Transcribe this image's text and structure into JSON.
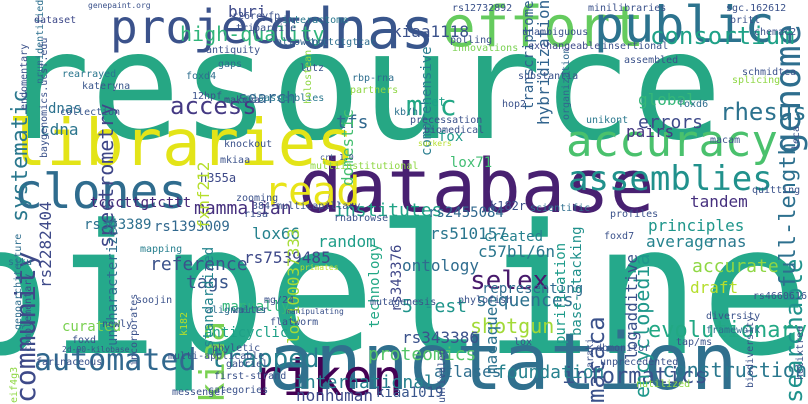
{
  "words": [
    {
      "text": "resource",
      "color": "#26a784"
    },
    {
      "text": "pipeline",
      "color": "#25a98b"
    },
    {
      "text": "annotation",
      "color": "#30708e"
    },
    {
      "text": "database",
      "color": "#482071"
    },
    {
      "text": "libraries",
      "color": "#e3e418"
    },
    {
      "text": "cdnas",
      "color": "#39568c"
    },
    {
      "text": "effort",
      "color": "#65cb5e"
    },
    {
      "text": "project",
      "color": "#3b528b"
    },
    {
      "text": "public",
      "color": "#2c738e"
    },
    {
      "text": "riken",
      "color": "#440154"
    },
    {
      "text": "accuracy",
      "color": "#4ac16d"
    },
    {
      "text": "clones",
      "color": "#2f6c8e"
    },
    {
      "text": "read",
      "color": "#e8e419"
    },
    {
      "text": "genome",
      "color": "#2e6e8e"
    },
    {
      "text": "automated",
      "color": "#31688e"
    },
    {
      "text": "trapped",
      "color": "#277f8e"
    },
    {
      "text": "assemblies",
      "color": "#21918c"
    },
    {
      "text": "community",
      "color": "#3e4a89"
    },
    {
      "text": "kiaa",
      "color": "#7ad151"
    },
    {
      "text": "consortium",
      "color": "#1fa187"
    },
    {
      "text": "access",
      "color": "#443983"
    },
    {
      "text": "mgc",
      "color": "#22a785"
    },
    {
      "text": "systematic",
      "color": "#2a788e"
    },
    {
      "text": "high-quality",
      "color": "#31b57b"
    },
    {
      "text": "spectrometry",
      "color": "#3f4788"
    },
    {
      "text": "macaca",
      "color": "#3b528b"
    },
    {
      "text": "searchable",
      "color": "#20928c"
    },
    {
      "text": "full-length",
      "color": "#2d708e"
    },
    {
      "text": "rhesus",
      "color": "#2c728e"
    },
    {
      "text": "selex",
      "color": "#481a6c"
    },
    {
      "text": "sequences",
      "color": "#2d718e"
    },
    {
      "text": "international",
      "color": "#26818e"
    },
    {
      "text": "evolutionary",
      "color": "#22a884"
    },
    {
      "text": "informatics",
      "color": "#3b528b"
    },
    {
      "text": "construction",
      "color": "#2a788e"
    },
    {
      "text": "atlases",
      "color": "#2e6e8e"
    },
    {
      "text": "foundation",
      "color": "#26828e"
    },
    {
      "text": "proteomics",
      "color": "#54c568"
    },
    {
      "text": "nonhuman",
      "color": "#3e4a89"
    },
    {
      "text": "kiaa1019",
      "color": "#39568c"
    },
    {
      "text": "shotgun",
      "color": "#a2da37"
    },
    {
      "text": "tags",
      "color": "#39568c"
    },
    {
      "text": "encyclopedia",
      "color": "#1f988b"
    },
    {
      "text": "principles",
      "color": "#1f968b"
    },
    {
      "text": "average",
      "color": "#25838e"
    },
    {
      "text": "rnas",
      "color": "#2a788e"
    },
    {
      "text": "tandem",
      "color": "#46307e"
    },
    {
      "text": "accurate",
      "color": "#8fd744"
    },
    {
      "text": "draft",
      "color": "#b5de2b"
    },
    {
      "text": "ontology",
      "color": "#2f6c8e"
    },
    {
      "text": "random",
      "color": "#1f9e89"
    },
    {
      "text": "c57bl/6n",
      "color": "#2a768e"
    },
    {
      "text": "macaque",
      "color": "#2c728e"
    },
    {
      "text": "5'-est",
      "color": "#1f958b"
    },
    {
      "text": "mammalian",
      "color": "#46307e"
    },
    {
      "text": "institutes",
      "color": "#20a386"
    },
    {
      "text": "hybridization",
      "color": "#32648e"
    },
    {
      "text": "comprehensive",
      "color": "#287d8e"
    },
    {
      "text": "transcriptome",
      "color": "#33628d"
    },
    {
      "text": "errors",
      "color": "#3e4a89"
    },
    {
      "text": "pairs",
      "color": "#453781"
    },
    {
      "text": "set",
      "color": "#1fa088"
    },
    {
      "text": "fox",
      "color": "#1f9a8a"
    },
    {
      "text": "lox71",
      "color": "#40bd72"
    },
    {
      "text": "global",
      "color": "#35b779"
    },
    {
      "text": "search",
      "color": "#32648e"
    },
    {
      "text": "tfs",
      "color": "#31688e"
    },
    {
      "text": "domestic",
      "color": "#44bf70"
    },
    {
      "text": "cdna",
      "color": "#2b758e"
    },
    {
      "text": "dnas",
      "color": "#2c728e"
    },
    {
      "text": "kiaa1118",
      "color": "#3b528b"
    },
    {
      "text": "buri",
      "color": "#3e4a89"
    },
    {
      "text": "rs2455084",
      "color": "#31688e"
    },
    {
      "text": "k182r",
      "color": "#3b528b"
    },
    {
      "text": "standardized",
      "color": "#25858e"
    },
    {
      "text": "uncharacterized",
      "color": "#2e6e8e"
    },
    {
      "text": "manually",
      "color": "#32b67a"
    },
    {
      "text": "curated",
      "color": "#7ad151"
    },
    {
      "text": "anticyclic",
      "color": "#1fa187"
    },
    {
      "text": "rs2282404",
      "color": "#3e4a89"
    },
    {
      "text": "rs7539485",
      "color": "#3e4989"
    },
    {
      "text": "rs1393009",
      "color": "#31688e"
    },
    {
      "text": "rs343389",
      "color": "#2d708e"
    },
    {
      "text": "lox66",
      "color": "#26828e"
    },
    {
      "text": "loc100037333",
      "color": "#a5db36"
    },
    {
      "text": "rs343376",
      "color": "#3f4788"
    },
    {
      "text": "rs510157",
      "color": "#2a768e"
    },
    {
      "text": "rs343386",
      "color": "#3b528b"
    },
    {
      "text": "technology",
      "color": "#22a785"
    },
    {
      "text": "representing",
      "color": "#2f6c8e"
    },
    {
      "text": "created",
      "color": "#26818e"
    },
    {
      "text": "purification",
      "color": "#1e9b8a"
    },
    {
      "text": "base-stacking",
      "color": "#21918c"
    },
    {
      "text": "logadditive",
      "color": "#3b528b"
    },
    {
      "text": "tcccttgtcttt",
      "color": "#482878"
    },
    {
      "text": "h355a",
      "color": "#3e4a89"
    },
    {
      "text": "situ",
      "color": "#2c728e"
    },
    {
      "text": "reference",
      "color": "#3b528b"
    },
    {
      "text": "mapping",
      "color": "#277f8e"
    },
    {
      "text": "primates",
      "color": "#bddf26"
    },
    {
      "text": "scientific",
      "color": "#2e6e8e"
    },
    {
      "text": "kb/h",
      "color": "#2c728e"
    },
    {
      "text": "organization",
      "color": "#31688e"
    },
    {
      "text": "unikont",
      "color": "#2a788e"
    },
    {
      "text": "makova",
      "color": "#3f4788"
    },
    {
      "text": "misassemblies",
      "color": "#2a788e"
    },
    {
      "text": "katerynа",
      "color": "#39568c"
    },
    {
      "text": "collection",
      "color": "#39568c"
    },
    {
      "text": "rearrayed",
      "color": "#2a768e"
    },
    {
      "text": "nrunidentified",
      "color": "#2d708e"
    },
    {
      "text": "dataset",
      "color": "#3e4989"
    },
    {
      "text": "genepaint.org",
      "color": "#3b528b"
    },
    {
      "text": "rs12732892",
      "color": "#3b528b"
    },
    {
      "text": "minilibraries",
      "color": "#3b528b"
    },
    {
      "text": "sgc.162612",
      "color": "#3b528b"
    },
    {
      "text": "britl",
      "color": "#3b528b"
    },
    {
      "text": "r26reyfp",
      "color": "#3b528b"
    },
    {
      "text": "tripartite",
      "color": "#3b528b"
    },
    {
      "text": "tcttctgtcac",
      "color": "#2e6e8e"
    },
    {
      "text": "allowing",
      "color": "#33638d"
    },
    {
      "text": "polling",
      "color": "#3b528b"
    },
    {
      "text": "innovations",
      "color": "#7ad151"
    },
    {
      "text": "exchangeable",
      "color": "#3e4a89"
    },
    {
      "text": "insertional",
      "color": "#3b528b"
    },
    {
      "text": "chemac2",
      "color": "#3b528b"
    },
    {
      "text": "interactome",
      "color": "#2a788e"
    },
    {
      "text": "antiquity",
      "color": "#3b528b"
    },
    {
      "text": "lutz",
      "color": "#3b528b"
    },
    {
      "text": "gaps",
      "color": "#2e6e8e"
    },
    {
      "text": "12hpf",
      "color": "#3b528b"
    },
    {
      "text": "foxd4",
      "color": "#2e6e8e"
    },
    {
      "text": "rbp-rna",
      "color": "#2e6e8e"
    },
    {
      "text": "partners",
      "color": "#8fd744"
    },
    {
      "text": "substantia",
      "color": "#3b528b"
    },
    {
      "text": "hop2",
      "color": "#3b528b"
    },
    {
      "text": "foxd6",
      "color": "#2e6e8e"
    },
    {
      "text": "splicing",
      "color": "#8fd744"
    },
    {
      "text": "schmidtea",
      "color": "#3b528b"
    },
    {
      "text": "holostean",
      "color": "#8fd744"
    },
    {
      "text": "precessation",
      "color": "#3b528b"
    },
    {
      "text": "biomedical",
      "color": "#3b528b"
    },
    {
      "text": "knockout",
      "color": "#3b528b"
    },
    {
      "text": "suckers",
      "color": "#b5de2b"
    },
    {
      "text": "macam",
      "color": "#3b528b"
    },
    {
      "text": "genoarchitecture",
      "color": "#2e6e8e"
    },
    {
      "text": "zooming",
      "color": "#3b528b"
    },
    {
      "text": "384-multicapillary",
      "color": "#3b528b"
    },
    {
      "text": "multiinstitutional",
      "color": "#8fd744"
    },
    {
      "text": "risa",
      "color": "#3b528b"
    },
    {
      "text": "rnabrowse",
      "color": "#3b528b"
    },
    {
      "text": "fxnf212",
      "color": "#b5de2b"
    },
    {
      "text": "mkiaa",
      "color": "#3b528b"
    },
    {
      "text": "crt 1.0",
      "color": "#3b528b"
    },
    {
      "text": "quitting",
      "color": "#3b528b"
    },
    {
      "text": "profiles",
      "color": "#3b528b"
    },
    {
      "text": "foxd7",
      "color": "#3b528b"
    },
    {
      "text": "rs4660616",
      "color": "#3b528b"
    },
    {
      "text": "diversity",
      "color": "#3b528b"
    },
    {
      "text": "framework",
      "color": "#2e6e8e"
    },
    {
      "text": "complementary",
      "color": "#3b528b"
    },
    {
      "text": "soojin",
      "color": "#3b528b"
    },
    {
      "text": "newly",
      "color": "#3b528b"
    },
    {
      "text": "incorporates",
      "color": "#3b528b"
    },
    {
      "text": "flatworm",
      "color": "#3b528b"
    },
    {
      "text": "walter",
      "color": "#3b528b"
    },
    {
      "text": "alignments",
      "color": "#2e6e8e"
    },
    {
      "text": "k182",
      "color": "#b5de2b"
    },
    {
      "text": "mg/24",
      "color": "#3b528b"
    },
    {
      "text": "manipulating",
      "color": "#3b528b"
    },
    {
      "text": "mutagenesis",
      "color": "#3b528b"
    },
    {
      "text": "phylofish",
      "color": "#3b528b"
    },
    {
      "text": "foxd",
      "color": "#3b528b"
    },
    {
      "text": "multi-applicable",
      "color": "#3b528b"
    },
    {
      "text": "2d-90-kilobase",
      "color": "#3b528b"
    },
    {
      "text": "eif4g3",
      "color": "#8fd744"
    },
    {
      "text": "phyletic",
      "color": "#3b528b"
    },
    {
      "text": "gabriel",
      "color": "#3b528b"
    },
    {
      "text": "first-strand",
      "color": "#3b528b"
    },
    {
      "text": "messenger",
      "color": "#3b528b"
    },
    {
      "text": "categories",
      "color": "#3b528b"
    },
    {
      "text": "unrivaled",
      "color": "#3b528b"
    },
    {
      "text": "lox",
      "color": "#3b528b"
    },
    {
      "text": "unprecedented",
      "color": "#3b528b"
    },
    {
      "text": "araki",
      "color": "#3b528b"
    },
    {
      "text": "tap/ms",
      "color": "#3b528b"
    },
    {
      "text": "nutilized",
      "color": "#8fd744"
    },
    {
      "text": "farinaceous",
      "color": "#3b528b"
    },
    {
      "text": "biodiversity",
      "color": "#3b528b"
    },
    {
      "text": "helixtree",
      "color": "#3b528b"
    },
    {
      "text": "baygenomics.ucsf.edu",
      "color": "#3b528b"
    },
    {
      "text": "endomentary",
      "color": "#3b528b"
    },
    {
      "text": "assembled",
      "color": "#3b528b"
    },
    {
      "text": "unambiguous",
      "color": "#3b528b"
    },
    {
      "text": "leca",
      "color": "#3b528b"
    },
    {
      "text": "dbmonitor",
      "color": "#3b528b"
    }
  ]
}
